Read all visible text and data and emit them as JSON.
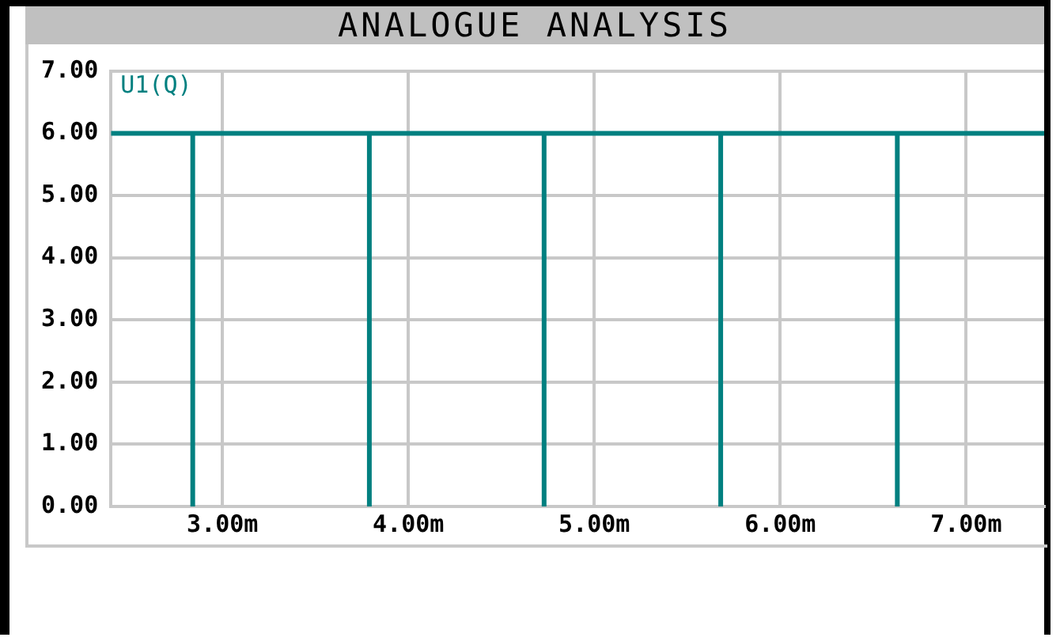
{
  "chart_data": {
    "type": "line",
    "title": "ANALOGUE ANALYSIS",
    "x": [
      2.4,
      2.84,
      2.84,
      2.84,
      3.79,
      3.79,
      3.79,
      4.73,
      4.73,
      4.73,
      5.68,
      5.68,
      5.68,
      6.63,
      6.63,
      6.63,
      7.42
    ],
    "series": [
      {
        "name": "U1(Q)",
        "color": "#008080",
        "values": [
          6,
          6,
          0,
          6,
          6,
          0,
          6,
          6,
          0,
          6,
          6,
          0,
          6,
          6,
          0,
          6,
          6
        ]
      }
    ],
    "xlim": [
      2.4,
      7.42
    ],
    "xticks": [
      {
        "value": 3,
        "label": "3.00m"
      },
      {
        "value": 4,
        "label": "4.00m"
      },
      {
        "value": 5,
        "label": "5.00m"
      },
      {
        "value": 6,
        "label": "6.00m"
      },
      {
        "value": 7,
        "label": "7.00m"
      }
    ],
    "ylim": [
      0,
      7
    ],
    "yticks": [
      {
        "value": 0,
        "label": "0.00"
      },
      {
        "value": 1,
        "label": "1.00"
      },
      {
        "value": 2,
        "label": "2.00"
      },
      {
        "value": 3,
        "label": "3.00"
      },
      {
        "value": 4,
        "label": "4.00"
      },
      {
        "value": 5,
        "label": "5.00"
      },
      {
        "value": 6,
        "label": "6.00"
      },
      {
        "value": 7,
        "label": "7.00"
      }
    ],
    "grid": true,
    "legend": "top left",
    "marker": "none",
    "line_style": "solid"
  }
}
